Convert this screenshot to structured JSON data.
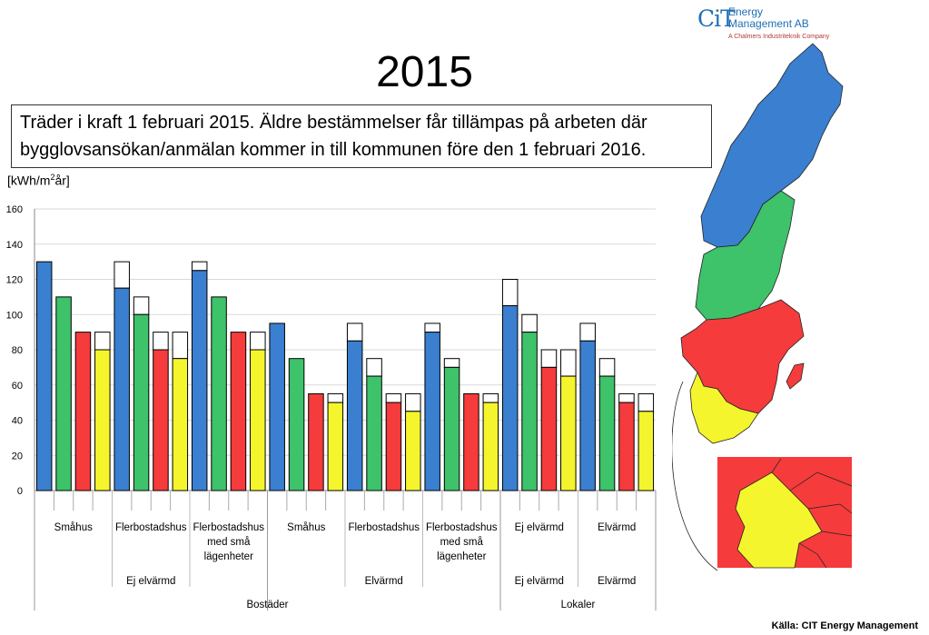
{
  "logo": {
    "mark": "CiT",
    "line1": "Energy",
    "line2": "Management AB",
    "tagline": "A Chalmers Industriteknik Company"
  },
  "title": "2015",
  "note": "Träder i kraft 1 februari 2015. Äldre bestämmelser får tillämpas på arbeten där bygglovsansökan/anmälan kommer in till kommunen före den 1 februari 2016.",
  "unit": {
    "prefix": "[kWh/m",
    "sup": "2",
    "suffix": "år]"
  },
  "source": "Källa: CIT Energy Management",
  "colors": {
    "blue": "#3a7fd0",
    "green": "#3ec26a",
    "red": "#f53b3b",
    "yellow": "#f5f52d",
    "gridline": "#d9d9d9"
  },
  "chart_data": {
    "type": "bar",
    "ylim": [
      0,
      160
    ],
    "yticks": [
      0,
      20,
      40,
      60,
      80,
      100,
      120,
      140,
      160
    ],
    "grid": true,
    "zones": [
      "blue",
      "green",
      "red",
      "yellow"
    ],
    "groups": [
      {
        "label": [
          "Småhus"
        ],
        "zone_values": [
          130,
          110,
          90,
          80
        ],
        "upper_values": [
          130,
          110,
          90,
          90
        ]
      },
      {
        "label": [
          "Flerbostadshus"
        ],
        "zone_values": [
          115,
          100,
          80,
          75
        ],
        "upper_values": [
          130,
          110,
          90,
          90
        ]
      },
      {
        "label": [
          "Flerbostadshus",
          "med små",
          "lägenheter"
        ],
        "zone_values": [
          125,
          110,
          90,
          80
        ],
        "upper_values": [
          130,
          110,
          90,
          90
        ]
      },
      {
        "label": [
          "Småhus"
        ],
        "zone_values": [
          95,
          75,
          55,
          50
        ],
        "upper_values": [
          95,
          75,
          55,
          55
        ]
      },
      {
        "label": [
          "Flerbostadshus"
        ],
        "zone_values": [
          85,
          65,
          50,
          45
        ],
        "upper_values": [
          95,
          75,
          55,
          55
        ]
      },
      {
        "label": [
          "Flerbostadshus",
          "med små",
          "lägenheter"
        ],
        "zone_values": [
          90,
          70,
          55,
          50
        ],
        "upper_values": [
          95,
          75,
          55,
          55
        ]
      },
      {
        "label": [
          "Ej elvärmd"
        ],
        "zone_values": [
          105,
          90,
          70,
          65
        ],
        "upper_values": [
          120,
          100,
          80,
          80
        ]
      },
      {
        "label": [
          "Elvärmd"
        ],
        "zone_values": [
          85,
          65,
          50,
          45
        ],
        "upper_values": [
          95,
          75,
          55,
          55
        ]
      }
    ],
    "level2": [
      {
        "label": "Ej elvärmd",
        "from_group": 0,
        "to_group": 2
      },
      {
        "label": "Elvärmd",
        "from_group": 3,
        "to_group": 5
      },
      {
        "label": "Ej elvärmd",
        "from_group": 6,
        "to_group": 6
      },
      {
        "label": "Elvärmd",
        "from_group": 7,
        "to_group": 7
      }
    ],
    "level3": [
      {
        "label": "Bostäder",
        "from_group": 0,
        "to_group": 5
      },
      {
        "label": "Lokaler",
        "from_group": 6,
        "to_group": 7
      }
    ]
  }
}
